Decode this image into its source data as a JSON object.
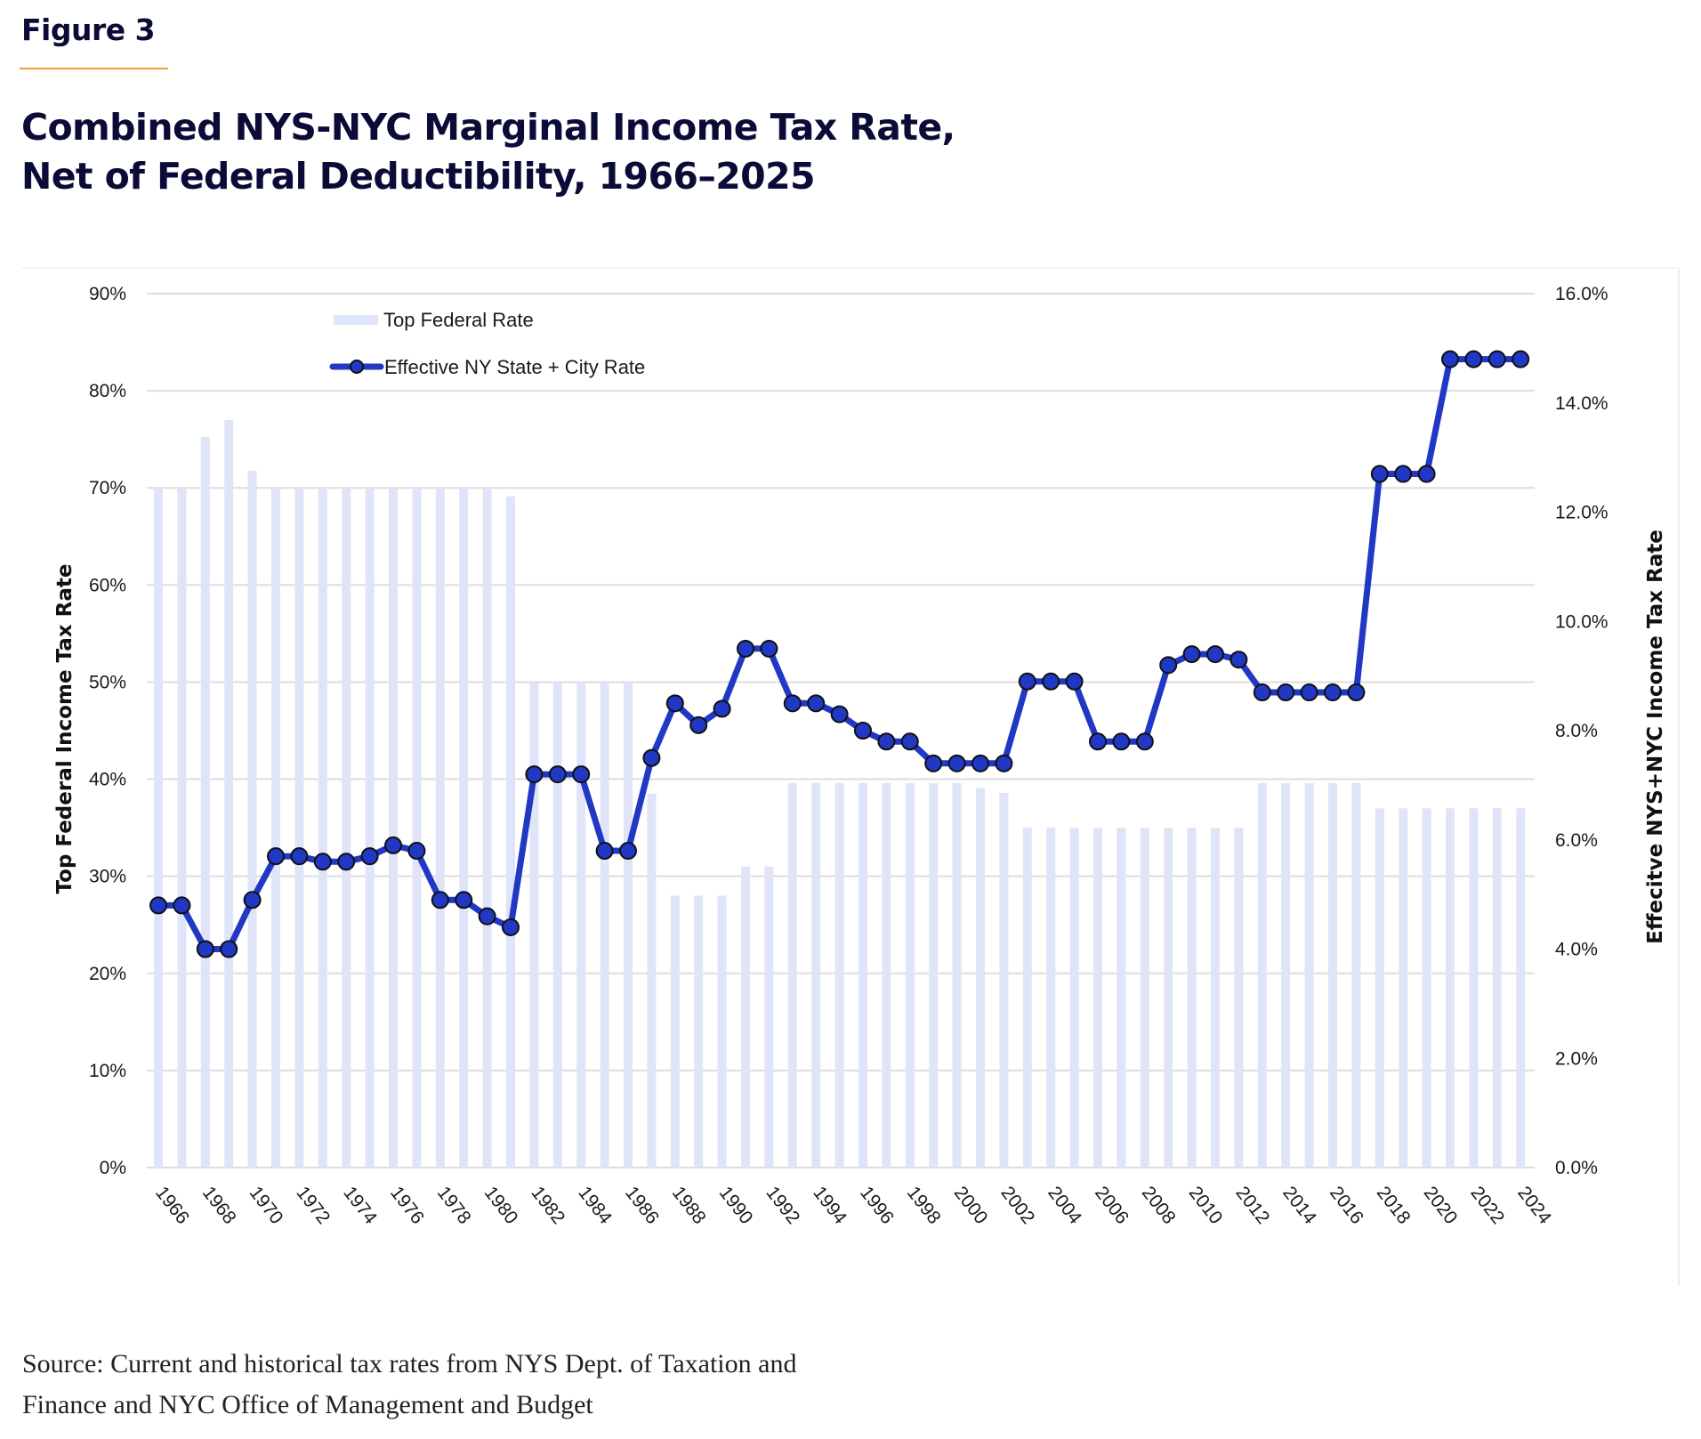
{
  "figure_label": "Figure 3",
  "title_lines": [
    "Combined NYS-NYC Marginal Income Tax Rate,",
    "Net of Federal Deductibility, 1966–2025"
  ],
  "source_lines": [
    "Source: Current and historical tax rates from NYS Dept. of Taxation and",
    "Finance and NYC Office of Management and Budget"
  ],
  "colors": {
    "bar": "#dfe4f8",
    "line": "#2038c4",
    "marker_stroke": "#111111",
    "grid": "#dddddd",
    "accent_rule": "#f0a030",
    "title": "#0b0b38"
  },
  "chart_data": {
    "type": "bar+line",
    "title": "Combined NYS-NYC Marginal Income Tax Rate, Net of Federal Deductibility, 1966–2025",
    "xlabel": "",
    "ylabel_left": "Top Federal Income Tax Rate",
    "ylabel_right": "Effecitve NYS+NYC Income Tax Rate",
    "ylim_left": [
      0,
      90
    ],
    "ylim_right": [
      0,
      16
    ],
    "yticks_left": [
      "0%",
      "10%",
      "20%",
      "30%",
      "40%",
      "50%",
      "60%",
      "70%",
      "80%",
      "90%"
    ],
    "yticks_right": [
      "0.0%",
      "2.0%",
      "4.0%",
      "6.0%",
      "8.0%",
      "10.0%",
      "12.0%",
      "14.0%",
      "16.0%"
    ],
    "xtick_labels": [
      "1966",
      "1968",
      "1970",
      "1972",
      "1974",
      "1976",
      "1978",
      "1980",
      "1982",
      "1984",
      "1986",
      "1988",
      "1990",
      "1992",
      "1994",
      "1996",
      "1998",
      "2000",
      "2002",
      "2004",
      "2006",
      "2008",
      "2010",
      "2012",
      "2014",
      "2016",
      "2018",
      "2020",
      "2022",
      "2024"
    ],
    "grid": true,
    "legend_position": "top-left",
    "years": [
      1966,
      1967,
      1968,
      1969,
      1970,
      1971,
      1972,
      1973,
      1974,
      1975,
      1976,
      1977,
      1978,
      1979,
      1980,
      1981,
      1982,
      1983,
      1984,
      1985,
      1986,
      1987,
      1988,
      1989,
      1990,
      1991,
      1992,
      1993,
      1994,
      1995,
      1996,
      1997,
      1998,
      1999,
      2000,
      2001,
      2002,
      2003,
      2004,
      2005,
      2006,
      2007,
      2008,
      2009,
      2010,
      2011,
      2012,
      2013,
      2014,
      2015,
      2016,
      2017,
      2018,
      2019,
      2020,
      2021,
      2022,
      2023,
      2024
    ],
    "series": [
      {
        "name": "Top Federal Rate",
        "type": "bar",
        "axis": "left",
        "values": [
          70,
          70,
          75.25,
          77,
          71.75,
          70,
          70,
          70,
          70,
          70,
          70,
          70,
          70,
          70,
          70,
          69.13,
          50,
          50,
          50,
          50,
          50,
          38.5,
          28,
          28,
          28,
          31,
          31,
          39.6,
          39.6,
          39.6,
          39.6,
          39.6,
          39.6,
          39.6,
          39.6,
          39.1,
          38.6,
          35,
          35,
          35,
          35,
          35,
          35,
          35,
          35,
          35,
          35,
          39.6,
          39.6,
          39.6,
          39.6,
          39.6,
          37,
          37,
          37,
          37,
          37,
          37,
          37
        ]
      },
      {
        "name": "Effective NY State + City Rate",
        "type": "line",
        "axis": "right",
        "values": [
          4.8,
          4.8,
          4.0,
          4.0,
          4.9,
          5.7,
          5.7,
          5.6,
          5.6,
          5.7,
          5.9,
          5.8,
          4.9,
          4.9,
          4.6,
          4.4,
          7.2,
          7.2,
          7.2,
          5.8,
          5.8,
          7.5,
          8.5,
          8.1,
          8.4,
          9.5,
          9.5,
          8.5,
          8.5,
          8.3,
          8.0,
          7.8,
          7.8,
          7.4,
          7.4,
          7.4,
          7.4,
          8.9,
          8.9,
          8.9,
          7.8,
          7.8,
          7.8,
          9.2,
          9.4,
          9.4,
          9.3,
          8.7,
          8.7,
          8.7,
          8.7,
          8.7,
          12.7,
          12.7,
          12.7,
          14.8,
          14.8,
          14.8,
          14.8
        ]
      }
    ]
  }
}
